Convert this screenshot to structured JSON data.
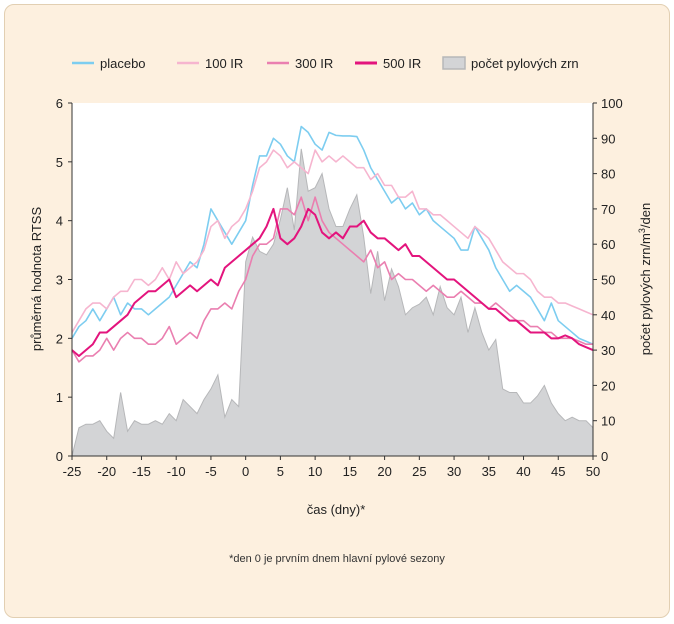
{
  "footnote": "*den 0 je prvním dnem hlavní pylové sezony",
  "colors": {
    "panel_background": "#fdf0df",
    "panel_border": "#e2cfb2",
    "plot_background": "#ffffff",
    "placebo": "#7dcdf0",
    "ir100": "#f6b5cf",
    "ir300": "#ea7fb0",
    "ir500": "#e3147d",
    "pollen_fill": "#d3d4d6",
    "pollen_stroke": "#b6b7b9"
  },
  "chart_data": {
    "type": "line",
    "title": "",
    "xlabel": "čas (dny)*",
    "ylabel": "průměrná hodnota RTSS",
    "y2label_parts": [
      "počet pylových zrn/m",
      "3",
      "/den"
    ],
    "xlim": [
      -25,
      50
    ],
    "ylim": [
      0,
      6
    ],
    "y2lim": [
      0,
      100
    ],
    "xticks": [
      -25,
      -20,
      -15,
      -10,
      -5,
      0,
      5,
      10,
      15,
      20,
      25,
      30,
      35,
      40,
      45,
      50
    ],
    "xtick_labels": [
      "-25",
      "-20",
      "-15",
      "-10",
      "-5",
      "0",
      "5",
      "10",
      "15",
      "20",
      "25",
      "30",
      "35",
      "40",
      "45",
      "50"
    ],
    "yticks": [
      0,
      1,
      2,
      3,
      4,
      5,
      6
    ],
    "ytick_labels": [
      "0",
      "1",
      "2",
      "3",
      "4",
      "5",
      "6"
    ],
    "y2ticks": [
      0,
      10,
      20,
      30,
      40,
      50,
      60,
      70,
      80,
      90,
      100
    ],
    "y2tick_labels": [
      "0",
      "10",
      "20",
      "30",
      "40",
      "50",
      "60",
      "70",
      "80",
      "90",
      "100"
    ],
    "grid": false,
    "legend_position": "top",
    "x": [
      -25,
      -24,
      -23,
      -22,
      -21,
      -20,
      -19,
      -18,
      -17,
      -16,
      -15,
      -14,
      -13,
      -12,
      -11,
      -10,
      -9,
      -8,
      -7,
      -6,
      -5,
      -4,
      -3,
      -2,
      -1,
      0,
      1,
      2,
      3,
      4,
      5,
      6,
      7,
      8,
      9,
      10,
      11,
      12,
      13,
      14,
      15,
      16,
      17,
      18,
      19,
      20,
      21,
      22,
      23,
      24,
      25,
      26,
      27,
      28,
      29,
      30,
      31,
      32,
      33,
      34,
      35,
      36,
      37,
      38,
      39,
      40,
      41,
      42,
      43,
      44,
      45,
      46,
      47,
      48,
      49,
      50
    ],
    "series": [
      {
        "name": "placebo",
        "type": "line",
        "axis": "left",
        "values": [
          2.0,
          2.2,
          2.3,
          2.5,
          2.3,
          2.5,
          2.7,
          2.4,
          2.6,
          2.5,
          2.5,
          2.4,
          2.5,
          2.6,
          2.7,
          2.9,
          3.1,
          3.3,
          3.2,
          3.6,
          4.2,
          4.0,
          3.8,
          3.6,
          3.8,
          4.0,
          4.6,
          5.1,
          5.1,
          5.4,
          5.3,
          5.1,
          5.0,
          5.6,
          5.5,
          5.3,
          5.2,
          5.5,
          5.45,
          5.44,
          5.44,
          5.43,
          5.2,
          4.9,
          4.7,
          4.5,
          4.3,
          4.4,
          4.2,
          4.3,
          4.1,
          4.2,
          4.0,
          3.9,
          3.8,
          3.7,
          3.5,
          3.5,
          3.9,
          3.7,
          3.5,
          3.2,
          3.0,
          2.8,
          2.9,
          2.8,
          2.7,
          2.5,
          2.3,
          2.6,
          2.3,
          2.2,
          2.1,
          2.0,
          1.95,
          1.9
        ]
      },
      {
        "name": "100 IR",
        "type": "line",
        "axis": "left",
        "values": [
          2.1,
          2.3,
          2.5,
          2.6,
          2.6,
          2.5,
          2.7,
          2.8,
          2.8,
          3.0,
          3.0,
          2.9,
          3.0,
          3.2,
          3.0,
          3.3,
          3.1,
          3.2,
          3.3,
          3.5,
          3.9,
          4.0,
          3.7,
          3.9,
          4.0,
          4.2,
          4.5,
          4.9,
          5.0,
          5.2,
          5.1,
          4.9,
          5.0,
          4.9,
          4.8,
          5.2,
          5.0,
          5.1,
          5.0,
          5.1,
          5.0,
          4.9,
          4.9,
          4.7,
          4.8,
          4.6,
          4.6,
          4.4,
          4.4,
          4.5,
          4.2,
          4.2,
          4.1,
          4.1,
          4.0,
          3.9,
          3.8,
          3.7,
          3.9,
          3.8,
          3.7,
          3.5,
          3.3,
          3.2,
          3.1,
          3.1,
          3.0,
          2.8,
          2.7,
          2.7,
          2.6,
          2.6,
          2.55,
          2.5,
          2.45,
          2.4
        ]
      },
      {
        "name": "300 IR",
        "type": "line",
        "axis": "left",
        "values": [
          1.8,
          1.6,
          1.7,
          1.7,
          1.8,
          2.0,
          1.8,
          2.0,
          2.1,
          2.0,
          2.0,
          1.9,
          1.9,
          2.0,
          2.2,
          1.9,
          2.0,
          2.1,
          2.0,
          2.3,
          2.5,
          2.5,
          2.6,
          2.5,
          2.8,
          3.0,
          3.4,
          3.6,
          3.6,
          3.7,
          4.2,
          4.2,
          4.1,
          4.4,
          4.0,
          4.4,
          4.0,
          3.8,
          3.7,
          3.6,
          3.5,
          3.4,
          3.3,
          3.5,
          3.2,
          3.3,
          3.0,
          3.1,
          3.0,
          3.0,
          2.9,
          2.8,
          2.9,
          2.8,
          2.7,
          2.7,
          2.8,
          2.7,
          2.6,
          2.6,
          2.5,
          2.6,
          2.5,
          2.4,
          2.3,
          2.3,
          2.2,
          2.2,
          2.1,
          2.1,
          2.0,
          2.0,
          2.0,
          1.95,
          1.9,
          1.9
        ]
      },
      {
        "name": "500 IR",
        "type": "line",
        "axis": "left",
        "values": [
          1.8,
          1.7,
          1.8,
          1.9,
          2.1,
          2.1,
          2.2,
          2.3,
          2.4,
          2.6,
          2.7,
          2.8,
          2.8,
          2.9,
          3.0,
          2.7,
          2.8,
          2.9,
          2.8,
          2.9,
          3.0,
          2.9,
          3.2,
          3.3,
          3.4,
          3.5,
          3.6,
          3.7,
          3.9,
          4.2,
          3.7,
          3.6,
          3.7,
          3.9,
          4.2,
          4.1,
          3.8,
          3.7,
          3.8,
          3.7,
          3.9,
          3.9,
          4.0,
          3.8,
          3.7,
          3.7,
          3.6,
          3.5,
          3.6,
          3.4,
          3.4,
          3.3,
          3.2,
          3.1,
          3.0,
          3.0,
          2.9,
          2.8,
          2.7,
          2.6,
          2.5,
          2.5,
          2.4,
          2.3,
          2.3,
          2.2,
          2.1,
          2.1,
          2.1,
          2.0,
          2.0,
          2.05,
          2.0,
          1.9,
          1.85,
          1.8
        ]
      },
      {
        "name": "počet pylových zrn",
        "type": "area",
        "axis": "right",
        "values": [
          0,
          8,
          9,
          9,
          10,
          7,
          5,
          18,
          7,
          10,
          9,
          9,
          10,
          9,
          12,
          10,
          16,
          14,
          12,
          16,
          19,
          23,
          11,
          16,
          14,
          55,
          62,
          58,
          57,
          60,
          67,
          76,
          64,
          87,
          75,
          76,
          80,
          70,
          65,
          65,
          70,
          74,
          62,
          46,
          58,
          44,
          53,
          48,
          40,
          42,
          43,
          45,
          40,
          48,
          42,
          40,
          45,
          35,
          42,
          35,
          30,
          33,
          19,
          18,
          18,
          15,
          15,
          17,
          20,
          15,
          12,
          10,
          11,
          10,
          10,
          8
        ]
      }
    ]
  }
}
